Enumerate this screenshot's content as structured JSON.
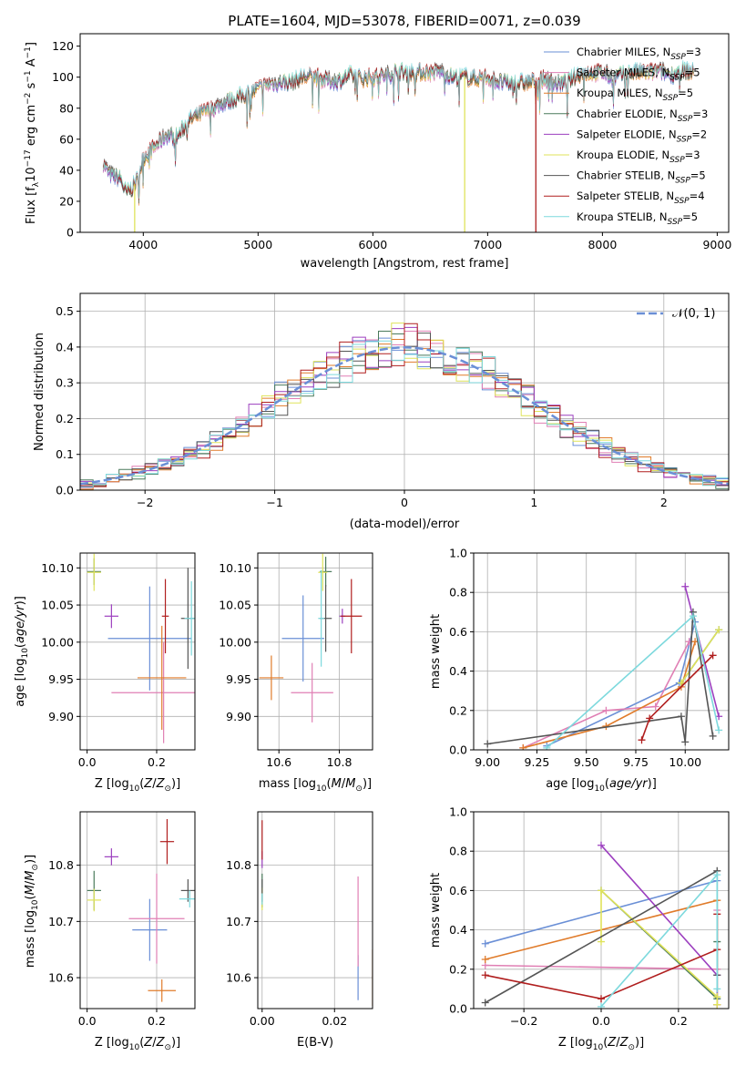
{
  "figure": {
    "title": "PLATE=1604, MJD=53078, FIBERID=0071, z=0.039"
  },
  "chart_data": [
    {
      "id": "spectrum",
      "type": "line",
      "xlabel": "wavelength [Angstrom, rest frame]",
      "ylabel": "Flux [f_λ10^-17 erg cm^-2 s^-1 A^-1]",
      "xlim": [
        3450,
        9100
      ],
      "ylim": [
        0,
        128
      ],
      "xticks": [
        4000,
        5000,
        6000,
        7000,
        8000,
        9000
      ],
      "yticks": [
        0,
        20,
        40,
        60,
        80,
        100,
        120
      ],
      "grid": false,
      "legend_position": "top-right",
      "continuum": {
        "x": [
          3650,
          3700,
          3800,
          3850,
          3900,
          3950,
          4000,
          4100,
          4200,
          4300,
          4400,
          4500,
          4600,
          4700,
          4800,
          4900,
          5000,
          5100,
          5200,
          5300,
          5400,
          5500,
          5600,
          5700,
          5800,
          5900,
          6000,
          6100,
          6200,
          6300,
          6400,
          6500,
          6600,
          6700,
          6800,
          6900,
          7000,
          7100,
          7200,
          7300,
          7400,
          7500,
          7600,
          7700,
          7800,
          7900,
          8000,
          8100,
          8200,
          8300,
          8400,
          8500,
          8600,
          8700,
          8800
        ],
        "y": [
          45,
          38,
          35,
          25,
          28,
          34,
          48,
          55,
          63,
          62,
          72,
          76,
          80,
          84,
          86,
          89,
          92,
          96,
          97,
          97,
          100,
          100,
          98,
          98,
          101,
          99,
          100,
          101,
          104,
          103,
          103,
          103,
          104,
          100,
          100,
          99,
          100,
          97,
          96,
          96,
          97,
          99,
          96,
          97,
          102,
          103,
          103,
          100,
          102,
          103,
          103,
          104,
          102,
          104,
          103
        ]
      },
      "drops": [
        {
          "x": 3925,
          "series": "Kroupa ELODIE"
        },
        {
          "x": 6800,
          "series": "Kroupa ELODIE"
        },
        {
          "x": 7420,
          "series": "Salpeter STELIB"
        }
      ],
      "series": [
        {
          "name": "Chabrier MILES",
          "nssp": "3",
          "color": "#6a8fd6"
        },
        {
          "name": "Salpeter MILES",
          "nssp": "5",
          "color": "#e07fb4"
        },
        {
          "name": "Kroupa MILES",
          "nssp": "5",
          "color": "#e07b2a"
        },
        {
          "name": "Chabrier ELODIE",
          "nssp": "3",
          "color": "#4a7a5c"
        },
        {
          "name": "Salpeter ELODIE",
          "nssp": "2",
          "color": "#9c3fbf"
        },
        {
          "name": "Kroupa ELODIE",
          "nssp": "3",
          "color": "#dfe35a"
        },
        {
          "name": "Chabrier STELIB",
          "nssp": "5",
          "color": "#555555"
        },
        {
          "name": "Salpeter STELIB",
          "nssp": "4",
          "color": "#b01e1e"
        },
        {
          "name": "Kroupa STELIB",
          "nssp": "5",
          "color": "#7dd9dd"
        }
      ]
    },
    {
      "id": "residuals",
      "type": "histogram",
      "xlabel": "(data-model)/error",
      "ylabel": "Normed distribution",
      "xlim": [
        -2.5,
        2.5
      ],
      "ylim": [
        0,
        0.55
      ],
      "xticks": [
        -2,
        -1,
        0,
        1,
        2
      ],
      "yticks": [
        0.0,
        0.1,
        0.2,
        0.3,
        0.4,
        0.5
      ],
      "grid": true,
      "legend_position": "top-right",
      "bin_width": 0.1,
      "hist_range": [
        -2.5,
        2.5
      ],
      "normal_label": "𝒩(0, 1)",
      "normal_color": "#6a8fd6",
      "series_order": [
        "Chabrier MILES",
        "Salpeter MILES",
        "Kroupa MILES",
        "Chabrier ELODIE",
        "Salpeter ELODIE",
        "Kroupa ELODIE",
        "Chabrier STELIB",
        "Salpeter STELIB",
        "Kroupa STELIB"
      ]
    },
    {
      "id": "age-vs-Z",
      "type": "errorbar",
      "xlabel": "Z [log10(Z/Z⊙)]",
      "ylabel": "age  [log10(age/yr)]",
      "xlim": [
        -0.02,
        0.31
      ],
      "ylim": [
        9.855,
        10.12
      ],
      "xticks": [
        0.0,
        0.2
      ],
      "yticks": [
        9.9,
        9.95,
        10.0,
        10.05,
        10.1
      ],
      "grid": true,
      "points": [
        {
          "series": "Chabrier MILES",
          "x": 0.18,
          "y": 10.005,
          "xerr": 0.12,
          "yerr": 0.07
        },
        {
          "series": "Salpeter MILES",
          "x": 0.22,
          "y": 9.932,
          "xerr": 0.15,
          "yerr": 0.068
        },
        {
          "series": "Kroupa MILES",
          "x": 0.215,
          "y": 9.952,
          "xerr": 0.07,
          "yerr": 0.07
        },
        {
          "series": "Chabrier ELODIE",
          "x": 0.02,
          "y": 10.095,
          "xerr": 0.02,
          "yerr": 0.018
        },
        {
          "series": "Salpeter ELODIE",
          "x": 0.07,
          "y": 10.035,
          "xerr": 0.02,
          "yerr": 0.016
        },
        {
          "series": "Kroupa ELODIE",
          "x": 0.02,
          "y": 10.094,
          "xerr": 0.02,
          "yerr": 0.025
        },
        {
          "series": "Chabrier STELIB",
          "x": 0.29,
          "y": 10.032,
          "xerr": 0.02,
          "yerr": 0.068
        },
        {
          "series": "Salpeter STELIB",
          "x": 0.225,
          "y": 10.035,
          "xerr": 0.01,
          "yerr": 0.05
        },
        {
          "series": "Kroupa STELIB",
          "x": 0.3,
          "y": 10.032,
          "xerr": 0.02,
          "yerr": 0.05
        }
      ]
    },
    {
      "id": "age-vs-mass",
      "type": "errorbar",
      "xlabel": "mass [log10(M/M⊙)]",
      "ylabel": "",
      "xlim": [
        10.53,
        10.91
      ],
      "ylim": [
        9.855,
        10.12
      ],
      "xticks": [
        10.6,
        10.8
      ],
      "yticks": [
        9.9,
        9.95,
        10.0,
        10.05,
        10.1
      ],
      "grid": true,
      "points": [
        {
          "series": "Chabrier MILES",
          "x": 10.68,
          "y": 10.005,
          "xerr": 0.07,
          "yerr": 0.058
        },
        {
          "series": "Salpeter MILES",
          "x": 10.71,
          "y": 9.932,
          "xerr": 0.07,
          "yerr": 0.04
        },
        {
          "series": "Kroupa MILES",
          "x": 10.575,
          "y": 9.952,
          "xerr": 0.04,
          "yerr": 0.03
        },
        {
          "series": "Chabrier ELODIE",
          "x": 10.755,
          "y": 10.095,
          "xerr": 0.02,
          "yerr": 0.02
        },
        {
          "series": "Salpeter ELODIE",
          "x": 10.81,
          "y": 10.035,
          "xerr": 0.01,
          "yerr": 0.01
        },
        {
          "series": "Kroupa ELODIE",
          "x": 10.745,
          "y": 10.094,
          "xerr": 0.015,
          "yerr": 0.025
        },
        {
          "series": "Chabrier STELIB",
          "x": 10.755,
          "y": 10.032,
          "xerr": 0.02,
          "yerr": 0.045
        },
        {
          "series": "Salpeter STELIB",
          "x": 10.84,
          "y": 10.035,
          "xerr": 0.035,
          "yerr": 0.05
        },
        {
          "series": "Kroupa STELIB",
          "x": 10.74,
          "y": 10.032,
          "xerr": 0.01,
          "yerr": 0.065
        }
      ]
    },
    {
      "id": "mass-weight-vs-age",
      "type": "line",
      "xlabel": "age  [log10(age/yr)]",
      "ylabel": "mass weight",
      "xlim": [
        8.93,
        10.22
      ],
      "ylim": [
        0,
        1
      ],
      "xticks": [
        9.0,
        9.25,
        9.5,
        9.75,
        10.0
      ],
      "yticks": [
        0.0,
        0.2,
        0.4,
        0.6,
        0.8,
        1.0
      ],
      "grid": true,
      "series": [
        {
          "name": "Chabrier MILES",
          "x": [
            9.3,
            9.97,
            10.05
          ],
          "y": [
            0.02,
            0.34,
            0.65
          ]
        },
        {
          "name": "Salpeter MILES",
          "x": [
            9.18,
            9.6,
            9.85,
            10.02
          ],
          "y": [
            0.01,
            0.2,
            0.22,
            0.55
          ]
        },
        {
          "name": "Kroupa MILES",
          "x": [
            9.18,
            9.6,
            9.98,
            10.05
          ],
          "y": [
            0.01,
            0.12,
            0.32,
            0.55
          ]
        },
        {
          "name": "Chabrier ELODIE",
          "x": [
            9.98,
            10.17
          ],
          "y": [
            0.34,
            0.61
          ]
        },
        {
          "name": "Salpeter ELODIE",
          "x": [
            10.0,
            10.17
          ],
          "y": [
            0.83,
            0.17
          ]
        },
        {
          "name": "Kroupa ELODIE",
          "x": [
            9.98,
            10.17
          ],
          "y": [
            0.34,
            0.61
          ]
        },
        {
          "name": "Chabrier STELIB",
          "x": [
            9.0,
            9.98,
            10.0,
            10.04,
            10.14
          ],
          "y": [
            0.03,
            0.17,
            0.04,
            0.7,
            0.07
          ]
        },
        {
          "name": "Salpeter STELIB",
          "x": [
            9.78,
            9.82,
            10.14
          ],
          "y": [
            0.05,
            0.16,
            0.48
          ]
        },
        {
          "name": "Kroupa STELIB",
          "x": [
            9.3,
            10.04,
            10.17
          ],
          "y": [
            0.01,
            0.68,
            0.1
          ]
        }
      ]
    },
    {
      "id": "mass-vs-Z",
      "type": "errorbar",
      "xlabel": "Z [log10(Z/Z⊙)]",
      "ylabel": "mass [log10(M/M⊙)]",
      "xlim": [
        -0.02,
        0.31
      ],
      "ylim": [
        10.545,
        10.895
      ],
      "xticks": [
        0.0,
        0.2
      ],
      "yticks": [
        10.6,
        10.7,
        10.8
      ],
      "grid": true,
      "points": [
        {
          "series": "Chabrier MILES",
          "x": 0.18,
          "y": 10.685,
          "xerr": 0.05,
          "yerr": 0.055
        },
        {
          "series": "Salpeter MILES",
          "x": 0.2,
          "y": 10.705,
          "xerr": 0.08,
          "yerr": 0.08
        },
        {
          "series": "Kroupa MILES",
          "x": 0.215,
          "y": 10.577,
          "xerr": 0.04,
          "yerr": 0.02
        },
        {
          "series": "Chabrier ELODIE",
          "x": 0.02,
          "y": 10.755,
          "xerr": 0.02,
          "yerr": 0.035
        },
        {
          "series": "Salpeter ELODIE",
          "x": 0.07,
          "y": 10.815,
          "xerr": 0.02,
          "yerr": 0.015
        },
        {
          "series": "Kroupa ELODIE",
          "x": 0.02,
          "y": 10.738,
          "xerr": 0.02,
          "yerr": 0.02
        },
        {
          "series": "Chabrier STELIB",
          "x": 0.29,
          "y": 10.755,
          "xerr": 0.02,
          "yerr": 0.02
        },
        {
          "series": "Salpeter STELIB",
          "x": 0.23,
          "y": 10.842,
          "xerr": 0.02,
          "yerr": 0.04
        },
        {
          "series": "Kroupa STELIB",
          "x": 0.295,
          "y": 10.74,
          "xerr": 0.03,
          "yerr": 0.015
        }
      ]
    },
    {
      "id": "mass-vs-ebv",
      "type": "errorbar",
      "xlabel": "E(B-V)",
      "ylabel": "",
      "xlim": [
        -0.0012,
        0.0305
      ],
      "ylim": [
        10.545,
        10.895
      ],
      "xticks": [
        0.0,
        0.02
      ],
      "yticks": [
        10.6,
        10.7,
        10.8
      ],
      "grid": true,
      "points": [
        {
          "series": "Chabrier MILES",
          "x": 0.0265,
          "y": 10.6,
          "xerr": 0.0,
          "yerr": 0.04
        },
        {
          "series": "Salpeter MILES",
          "x": 0.0265,
          "y": 10.7,
          "xerr": 0.0,
          "yerr": 0.08
        },
        {
          "series": "Kroupa MILES",
          "x": 0.0305,
          "y": 10.6,
          "xerr": 0.0,
          "yerr": 0.05
        },
        {
          "series": "Chabrier ELODIE",
          "x": 0.0,
          "y": 10.755,
          "xerr": 0.0,
          "yerr": 0.03
        },
        {
          "series": "Salpeter ELODIE",
          "x": 0.0,
          "y": 10.81,
          "xerr": 0.0,
          "yerr": 0.015
        },
        {
          "series": "Kroupa ELODIE",
          "x": 0.0,
          "y": 10.74,
          "xerr": 0.0,
          "yerr": 0.02
        },
        {
          "series": "Chabrier STELIB",
          "x": 0.0,
          "y": 10.755,
          "xerr": 0.0,
          "yerr": 0.02
        },
        {
          "series": "Salpeter STELIB",
          "x": 0.0,
          "y": 10.845,
          "xerr": 0.0,
          "yerr": 0.035
        },
        {
          "series": "Kroupa STELIB",
          "x": 0.0,
          "y": 10.74,
          "xerr": 0.0,
          "yerr": 0.01
        }
      ]
    },
    {
      "id": "mass-weight-vs-Z",
      "type": "line",
      "xlabel": "Z [log10(Z/Z⊙)]",
      "ylabel": "mass weight",
      "xlim": [
        -0.33,
        0.33
      ],
      "ylim": [
        0,
        1
      ],
      "xticks": [
        -0.2,
        0.0,
        0.2
      ],
      "yticks": [
        0.0,
        0.2,
        0.4,
        0.6,
        0.8,
        1.0
      ],
      "grid": true,
      "series": [
        {
          "name": "Chabrier MILES",
          "x": [
            -0.3,
            0.3
          ],
          "y": [
            0.33,
            0.65
          ]
        },
        {
          "name": "Salpeter MILES",
          "x": [
            -0.3,
            0.3,
            0.3
          ],
          "y": [
            0.22,
            0.2,
            0.5
          ]
        },
        {
          "name": "Kroupa MILES",
          "x": [
            -0.3,
            0.3,
            0.3
          ],
          "y": [
            0.25,
            0.55,
            0.02
          ]
        },
        {
          "name": "Chabrier ELODIE",
          "x": [
            0.0,
            0.3,
            0.3
          ],
          "y": [
            0.6,
            0.05,
            0.34
          ]
        },
        {
          "name": "Salpeter ELODIE",
          "x": [
            0.0,
            0.3,
            0.3
          ],
          "y": [
            0.83,
            0.17,
            0.02
          ]
        },
        {
          "name": "Kroupa ELODIE",
          "x": [
            0.0,
            0.0,
            0.3,
            0.3
          ],
          "y": [
            0.34,
            0.6,
            0.06,
            0.02
          ]
        },
        {
          "name": "Chabrier STELIB",
          "x": [
            -0.3,
            0.3,
            0.3
          ],
          "y": [
            0.03,
            0.7,
            0.17
          ]
        },
        {
          "name": "Salpeter STELIB",
          "x": [
            -0.3,
            0.0,
            0.3,
            0.3
          ],
          "y": [
            0.17,
            0.05,
            0.3,
            0.48
          ]
        },
        {
          "name": "Kroupa STELIB",
          "x": [
            0.0,
            0.3,
            0.3
          ],
          "y": [
            0.01,
            0.68,
            0.1
          ]
        }
      ]
    }
  ]
}
